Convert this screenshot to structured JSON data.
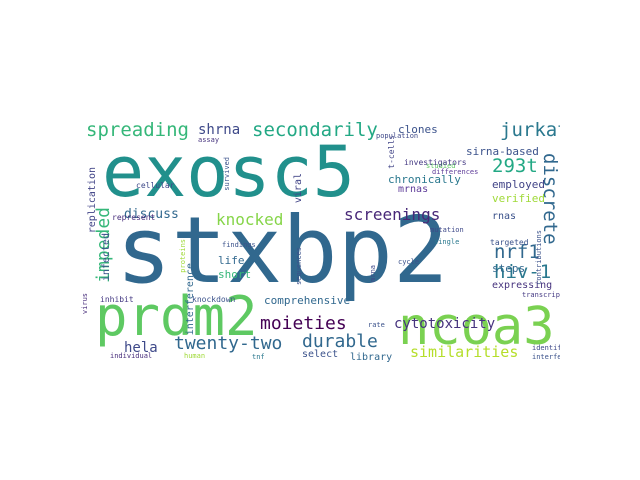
{
  "words": [
    "exosc5",
    "stxbp2",
    "prdm2",
    "ncoa3",
    "spreading",
    "secondarily",
    "jurkat",
    "shrna",
    "clones",
    "293t",
    "discrete",
    "nrf1",
    "hiv-1",
    "screenings",
    "knocked",
    "impeded",
    "durable",
    "twenty-two",
    "moieties",
    "hela",
    "similarities",
    "cytotoxicity",
    "comprehensive",
    "discuss",
    "sirna-based",
    "employed",
    "verified",
    "rnas",
    "steps",
    "chronically",
    "mrnas",
    "life",
    "short",
    "silenced",
    "infected",
    "replication",
    "interference",
    "viral",
    "select",
    "library",
    "expressing",
    "population",
    "studied",
    "investigators",
    "t-cells",
    "differences",
    "assay",
    "survived",
    "cellular",
    "represent",
    "mutation",
    "single",
    "findings",
    "proteins",
    "sequences",
    "mrna",
    "cycle",
    "targeted",
    "contributions",
    "inhibit",
    "knockdown",
    "transcripts",
    "virus",
    "rate",
    "identify",
    "interfering",
    "individual",
    "human",
    "tnf"
  ]
}
